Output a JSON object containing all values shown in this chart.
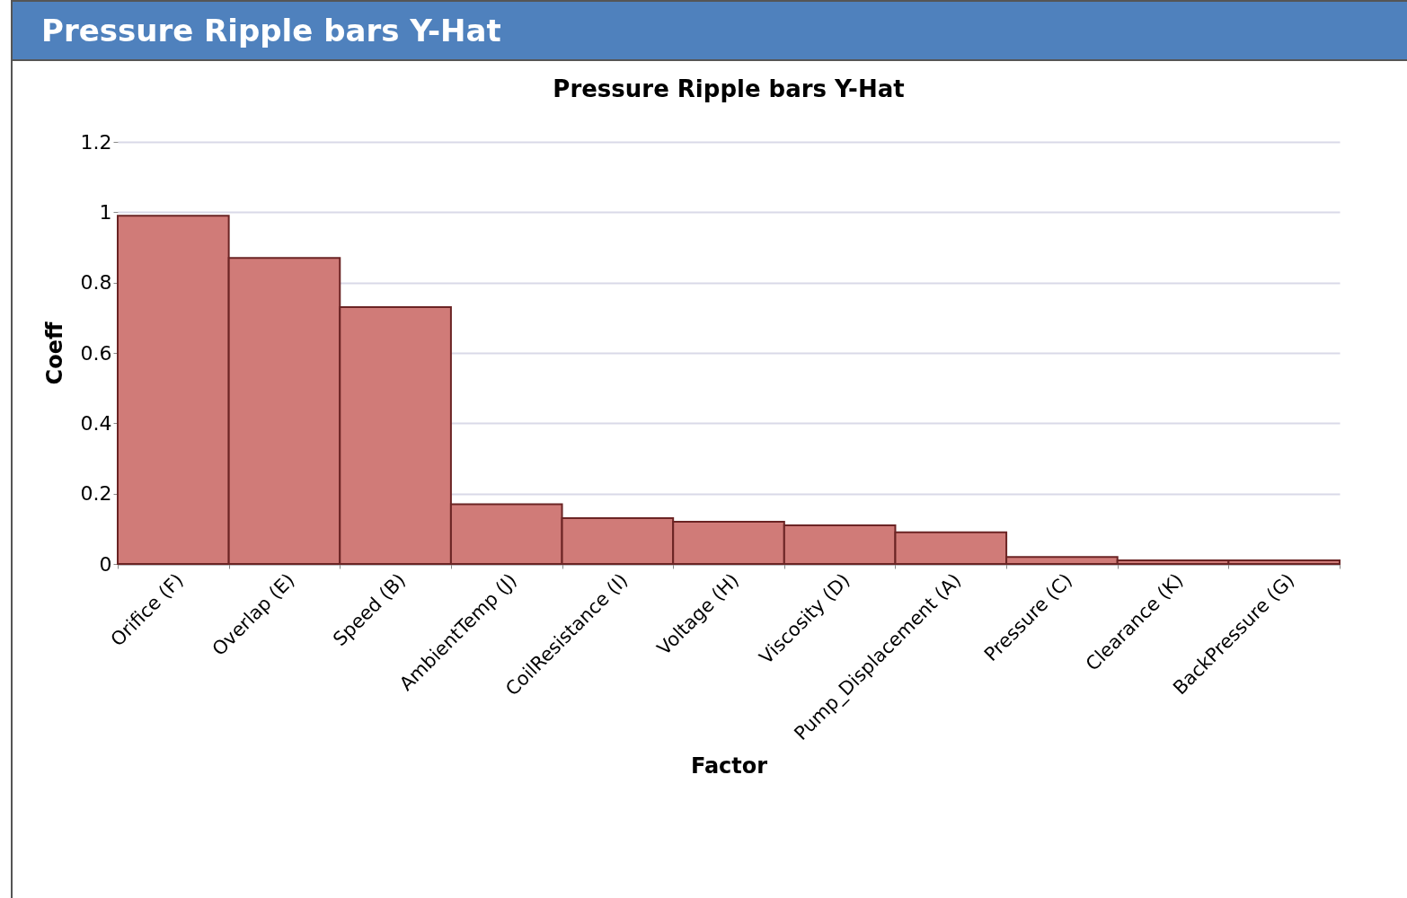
{
  "chart_data": {
    "type": "bar",
    "title": "Pressure Ripple bars Y-Hat",
    "xlabel": "Factor",
    "ylabel": "Coeff",
    "annotations": [
      "Pressure Ripple bars Y-Hat"
    ],
    "categories": [
      "Orifice (F)",
      "Overlap (E)",
      "Speed (B)",
      "AmbientTemp (J)",
      "CoilResistance (I)",
      "Voltage (H)",
      "Viscosity (D)",
      "Pump_Displacement (A)",
      "Pressure (C)",
      "Clearance (K)",
      "BackPressure (G)"
    ],
    "values": [
      0.99,
      0.87,
      0.73,
      0.17,
      0.13,
      0.12,
      0.11,
      0.09,
      0.02,
      0.01,
      0.01
    ],
    "color": "#d07b78",
    "ylim": [
      0,
      1.2
    ],
    "yticks": [
      0,
      0.2,
      0.4,
      0.6,
      0.8,
      1,
      1.2
    ],
    "grid": "y"
  }
}
